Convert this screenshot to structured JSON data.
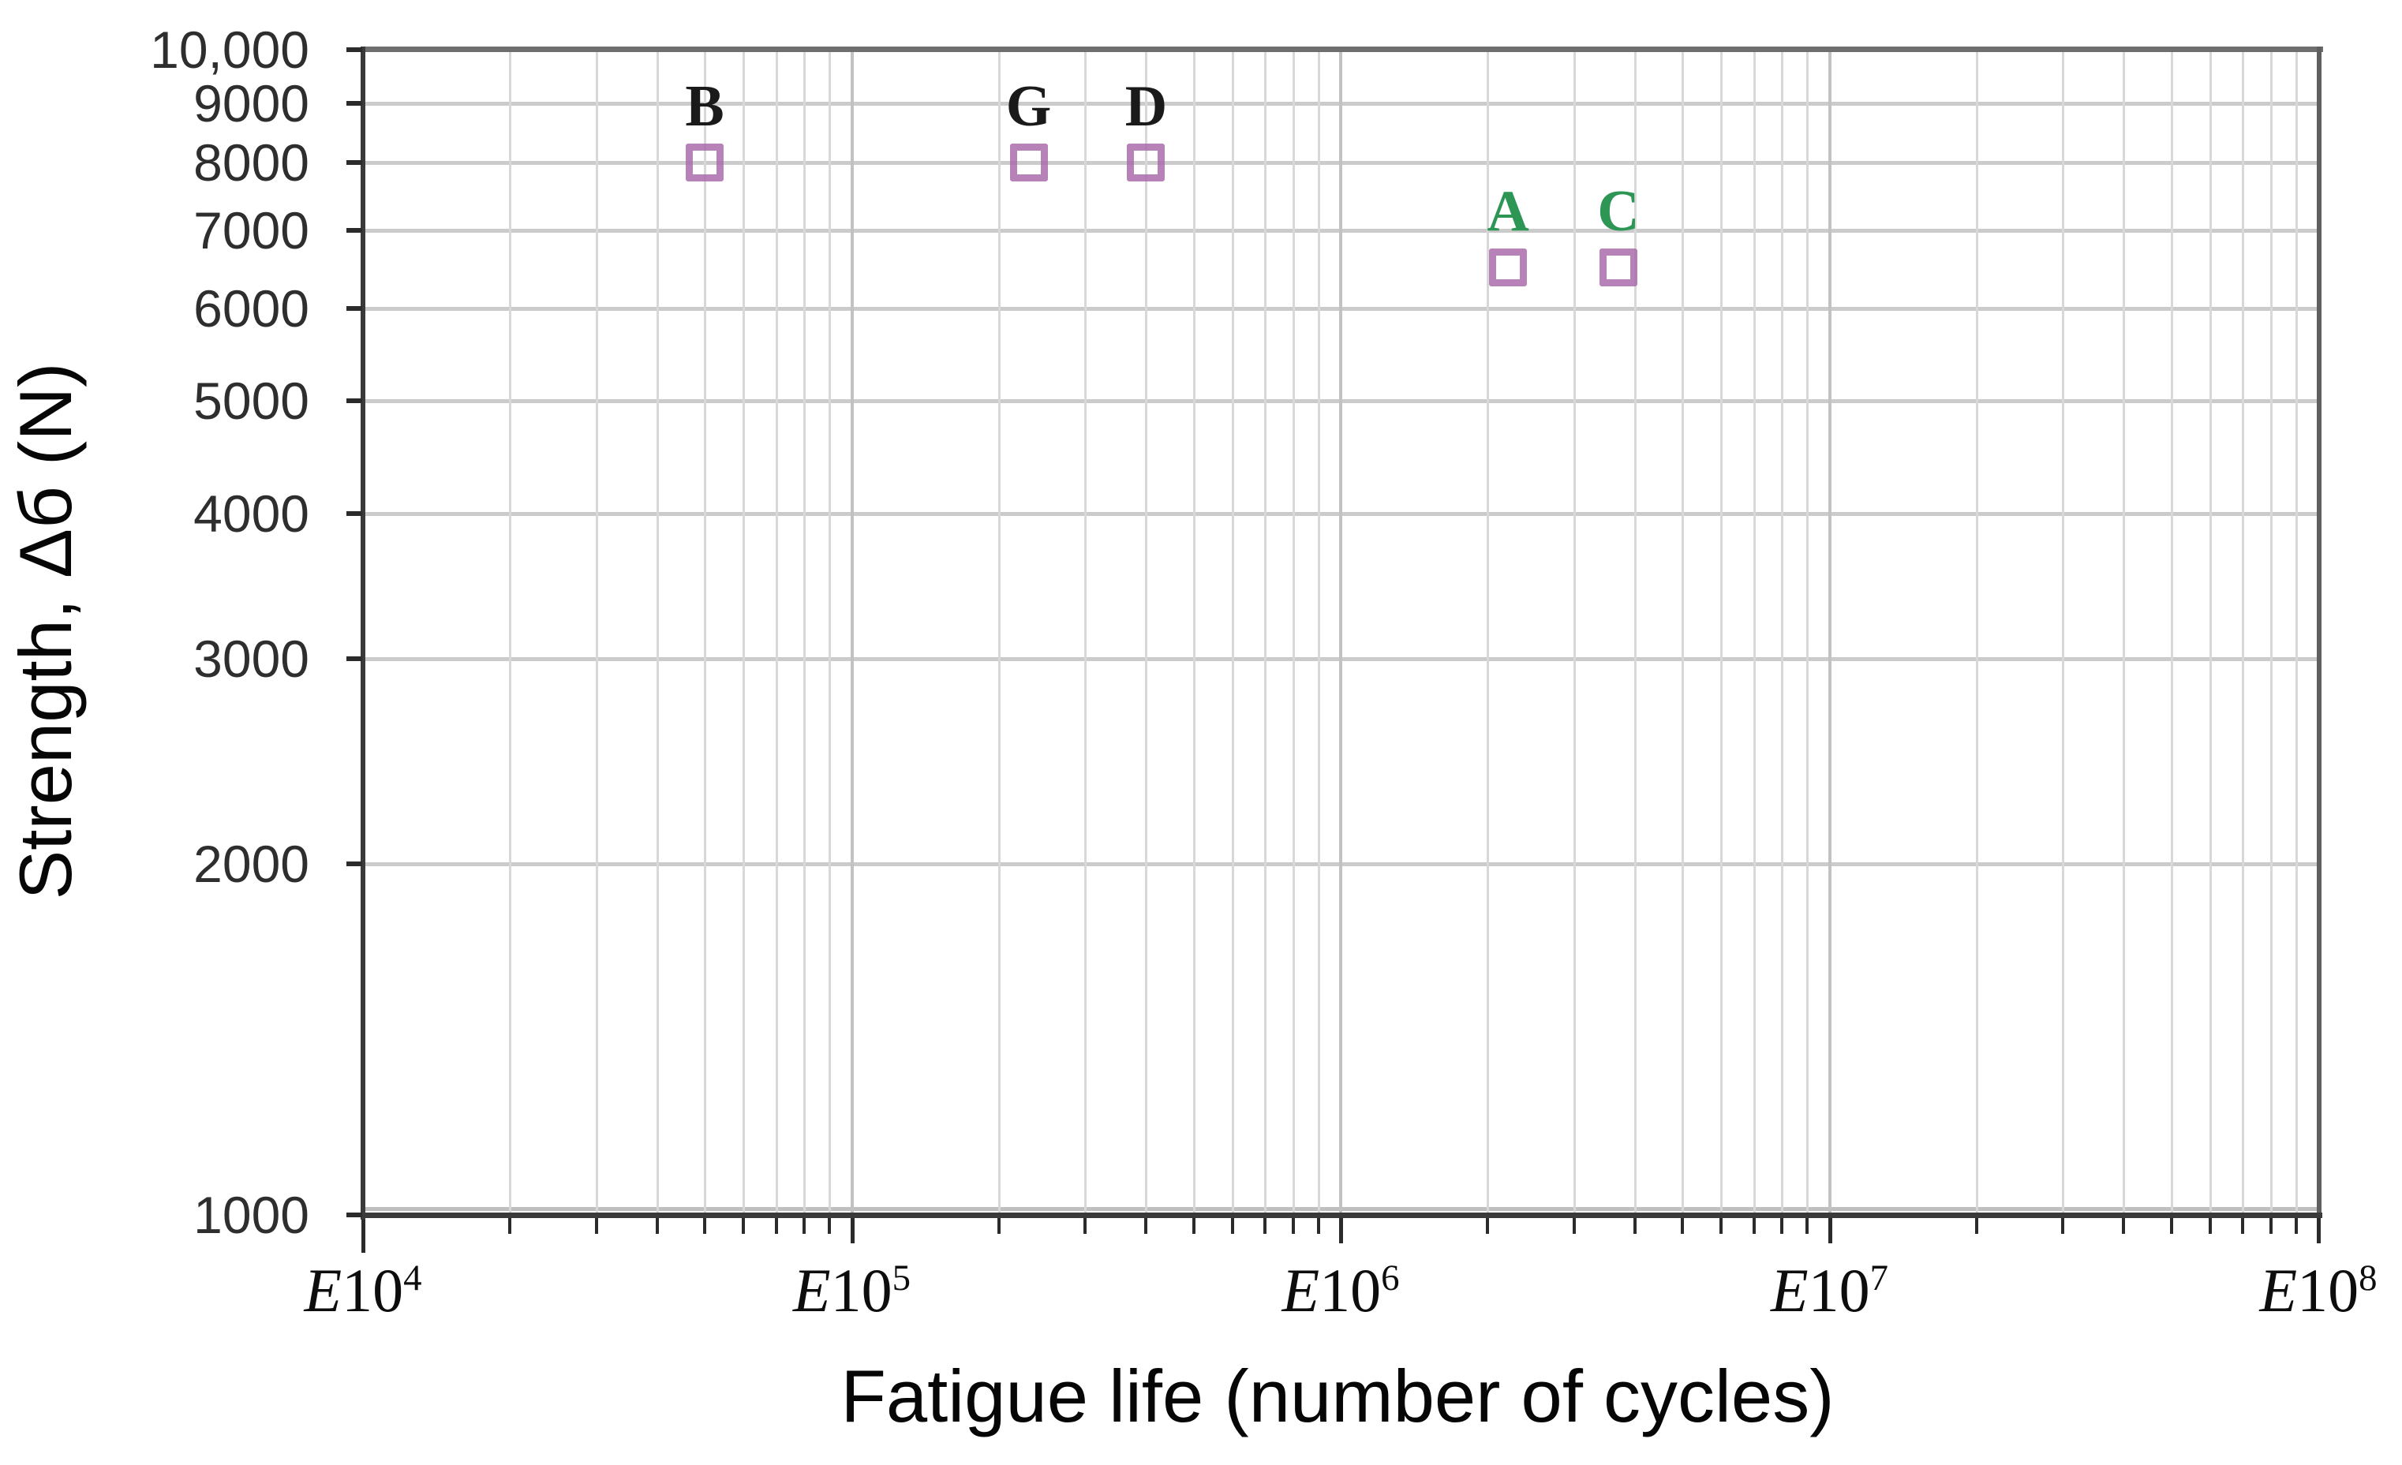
{
  "chart_data": {
    "type": "scatter",
    "title": "",
    "xlabel": "Fatigue life (number of cycles)",
    "ylabel": "Strength, Δб (N)",
    "x_scale": "log",
    "y_scale": "log",
    "xlim": [
      10000,
      100000000
    ],
    "ylim": [
      1000,
      10000
    ],
    "grid": "on",
    "legend": "none",
    "x_axis": {
      "title": "Fatigue life (number of cycles)",
      "ticks": [
        {
          "text": "E10",
          "sup": "4",
          "value": 10000
        },
        {
          "text": "E10",
          "sup": "5",
          "value": 100000
        },
        {
          "text": "E10",
          "sup": "6",
          "value": 1000000
        },
        {
          "text": "E10",
          "sup": "7",
          "value": 10000000
        },
        {
          "text": "E10",
          "sup": "8",
          "value": 100000000
        }
      ]
    },
    "y_axis": {
      "title": "Strength, Δб (N)",
      "ticks": [
        {
          "label": "10,000",
          "value": 10000
        },
        {
          "label": "9000",
          "value": 9000
        },
        {
          "label": "8000",
          "value": 8000
        },
        {
          "label": "7000",
          "value": 7000
        },
        {
          "label": "6000",
          "value": 6000
        },
        {
          "label": "5000",
          "value": 5000
        },
        {
          "label": "4000",
          "value": 4000
        },
        {
          "label": "3000",
          "value": 3000
        },
        {
          "label": "2000",
          "value": 2000
        },
        {
          "label": "1000",
          "value": 1000
        }
      ]
    },
    "marker": {
      "shape": "open-square",
      "stroke_color": "#aa6cab"
    },
    "points": [
      {
        "label": "B",
        "x": 50000,
        "y": 8000,
        "label_color": "#1a1a1a"
      },
      {
        "label": "G",
        "x": 230000,
        "y": 8000,
        "label_color": "#1a1a1a"
      },
      {
        "label": "D",
        "x": 400000,
        "y": 8000,
        "label_color": "#1a1a1a"
      },
      {
        "label": "A",
        "x": 2200000,
        "y": 6500,
        "label_color": "#2e9655"
      },
      {
        "label": "C",
        "x": 3700000,
        "y": 6500,
        "label_color": "#2e9655"
      }
    ],
    "colors": {
      "marker_stroke": "#aa6cab",
      "point_label_black": "#1a1a1a",
      "point_label_green": "#2e9655",
      "axis_line": "#3a3a3a",
      "frame_line": "#6e6e6e",
      "grid_horizontal": "#cbcbcb",
      "grid_vertical_minor": "#d8d8d8",
      "grid_vertical_major": "#c2c2c2",
      "tick_text": "#2e2e2e"
    }
  }
}
